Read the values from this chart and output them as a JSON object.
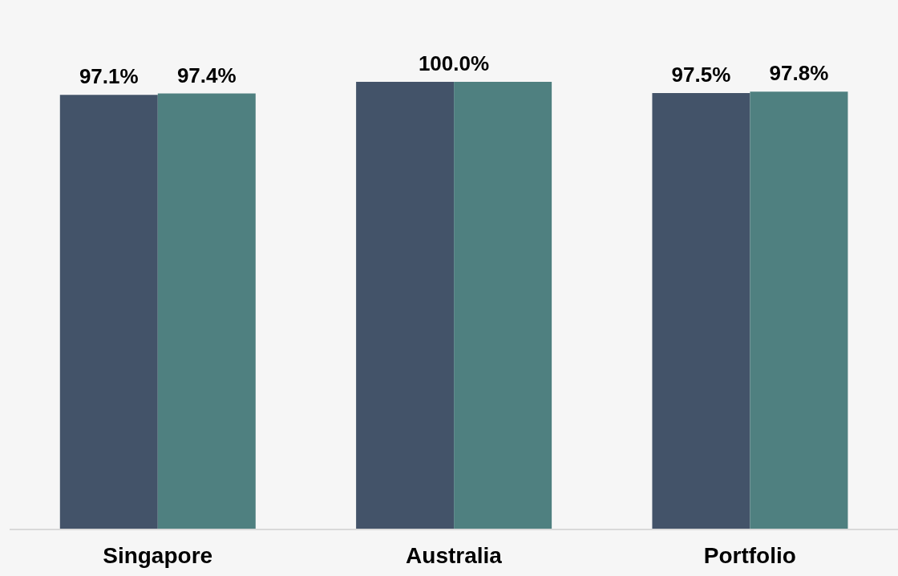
{
  "chart_data": {
    "type": "bar",
    "categories": [
      "Singapore",
      "Australia",
      "Portfolio"
    ],
    "series": [
      {
        "color": "#435369",
        "values": [
          97.1,
          100.0,
          97.5
        ],
        "value_labels": [
          "97.1%",
          null,
          "97.5%"
        ]
      },
      {
        "color": "#4f8080",
        "values": [
          97.4,
          100.0,
          97.8
        ],
        "value_labels": [
          "97.4%",
          null,
          "97.8%"
        ]
      }
    ],
    "annotations": [
      {
        "text": "100.0%",
        "x": "Australia",
        "y": 100.0
      }
    ],
    "ylim": [
      0,
      100
    ],
    "grid": false,
    "tick_labels": "x"
  }
}
